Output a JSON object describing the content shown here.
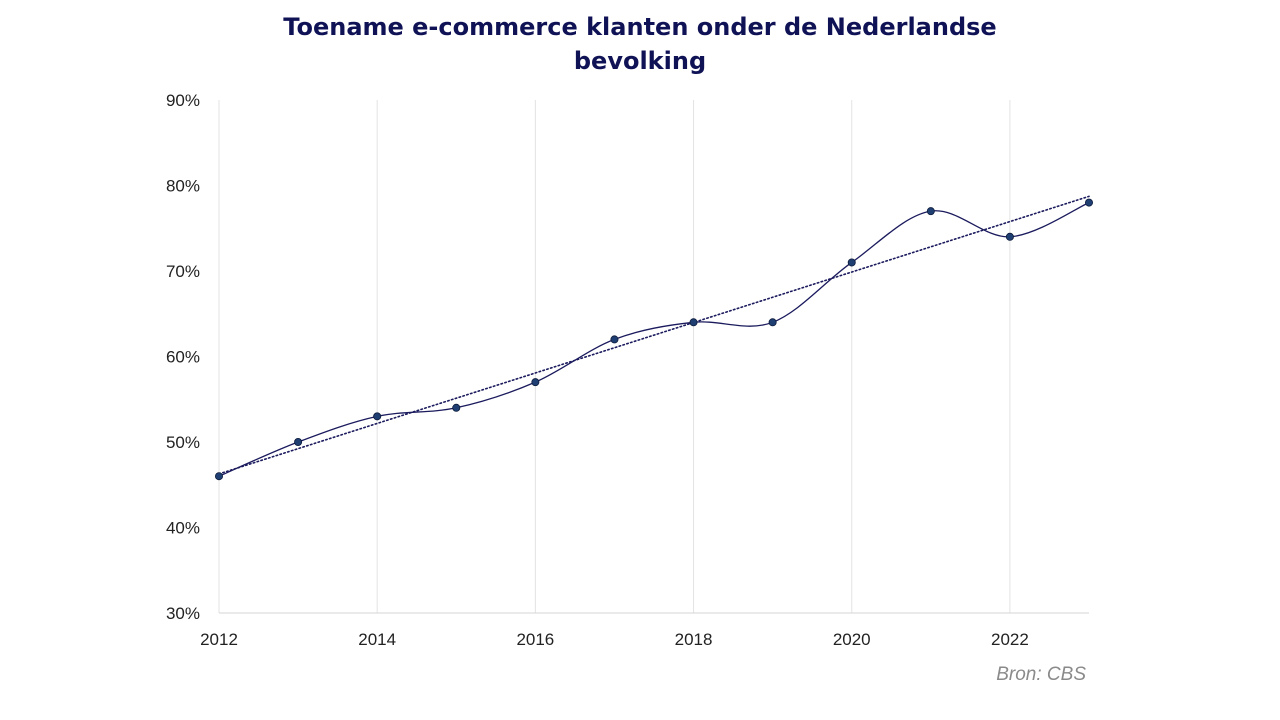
{
  "chart_data": {
    "type": "line",
    "title": "Toename e-commerce klanten onder de Nederlandse bevolking",
    "title_lines": [
      "Toename e-commerce klanten onder de Nederlandse",
      "bevolking"
    ],
    "x": [
      2012,
      2013,
      2014,
      2015,
      2016,
      2017,
      2018,
      2019,
      2020,
      2021,
      2022,
      2023
    ],
    "series": [
      {
        "values": [
          46,
          50,
          53,
          54,
          57,
          62,
          64,
          64,
          71,
          77,
          74,
          78
        ],
        "color": "#1f3f73",
        "line_color": "#1b1b5e",
        "smooth": true,
        "markers": true
      }
    ],
    "trendline": {
      "type": "linear",
      "style": "dotted",
      "color": "#1b1b5e"
    },
    "ylim": [
      30,
      90
    ],
    "xlim": [
      2012,
      2023
    ],
    "y_ticks": [
      30,
      40,
      50,
      60,
      70,
      80,
      90
    ],
    "y_tick_labels": [
      "30%",
      "40%",
      "50%",
      "60%",
      "70%",
      "80%",
      "90%"
    ],
    "x_ticks": [
      2012,
      2014,
      2016,
      2018,
      2020,
      2022
    ],
    "x_tick_labels": [
      "2012",
      "2014",
      "2016",
      "2018",
      "2020",
      "2022"
    ],
    "grid": {
      "vertical": true,
      "horizontal": false
    },
    "legend": "none",
    "source": "Bron: CBS"
  }
}
